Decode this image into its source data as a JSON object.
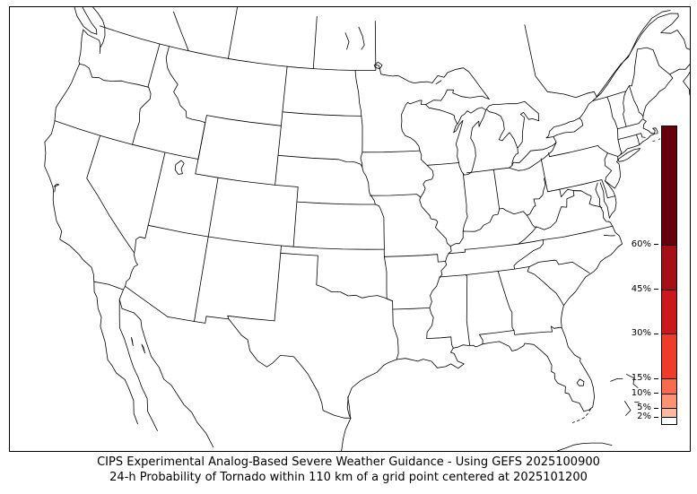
{
  "caption": {
    "line1": "CIPS Experimental Analog-Based Severe Weather Guidance - Using GEFS 2025100900",
    "line2": "24-h Probability of Tornado within 110 km of a grid point centered at 2025101200"
  },
  "map": {
    "region": "CONUS state outlines with surrounding Canada, Mexico, Cuba and Bahamas coastlines",
    "shaded_probability_regions": []
  },
  "colorbar": {
    "orientation": "vertical",
    "scale_min": 0,
    "scale_max": 100,
    "levels": [
      {
        "from": 0,
        "to": 2,
        "color": "#ffffff"
      },
      {
        "from": 2,
        "to": 5,
        "color": "#fcbba1"
      },
      {
        "from": 5,
        "to": 10,
        "color": "#fc9272"
      },
      {
        "from": 10,
        "to": 15,
        "color": "#fb6a4a"
      },
      {
        "from": 15,
        "to": 30,
        "color": "#ee3b2b"
      },
      {
        "from": 30,
        "to": 45,
        "color": "#cb181d"
      },
      {
        "from": 45,
        "to": 60,
        "color": "#a50f15"
      },
      {
        "from": 60,
        "to": 100,
        "color": "#67000d"
      }
    ],
    "ticks": [
      {
        "value": 60,
        "label": "60%"
      },
      {
        "value": 45,
        "label": "45%"
      },
      {
        "value": 30,
        "label": "30%"
      },
      {
        "value": 15,
        "label": "15%"
      },
      {
        "value": 10,
        "label": "10%"
      },
      {
        "value": 5,
        "label": "5%"
      },
      {
        "value": 2,
        "label": "2%"
      }
    ]
  }
}
